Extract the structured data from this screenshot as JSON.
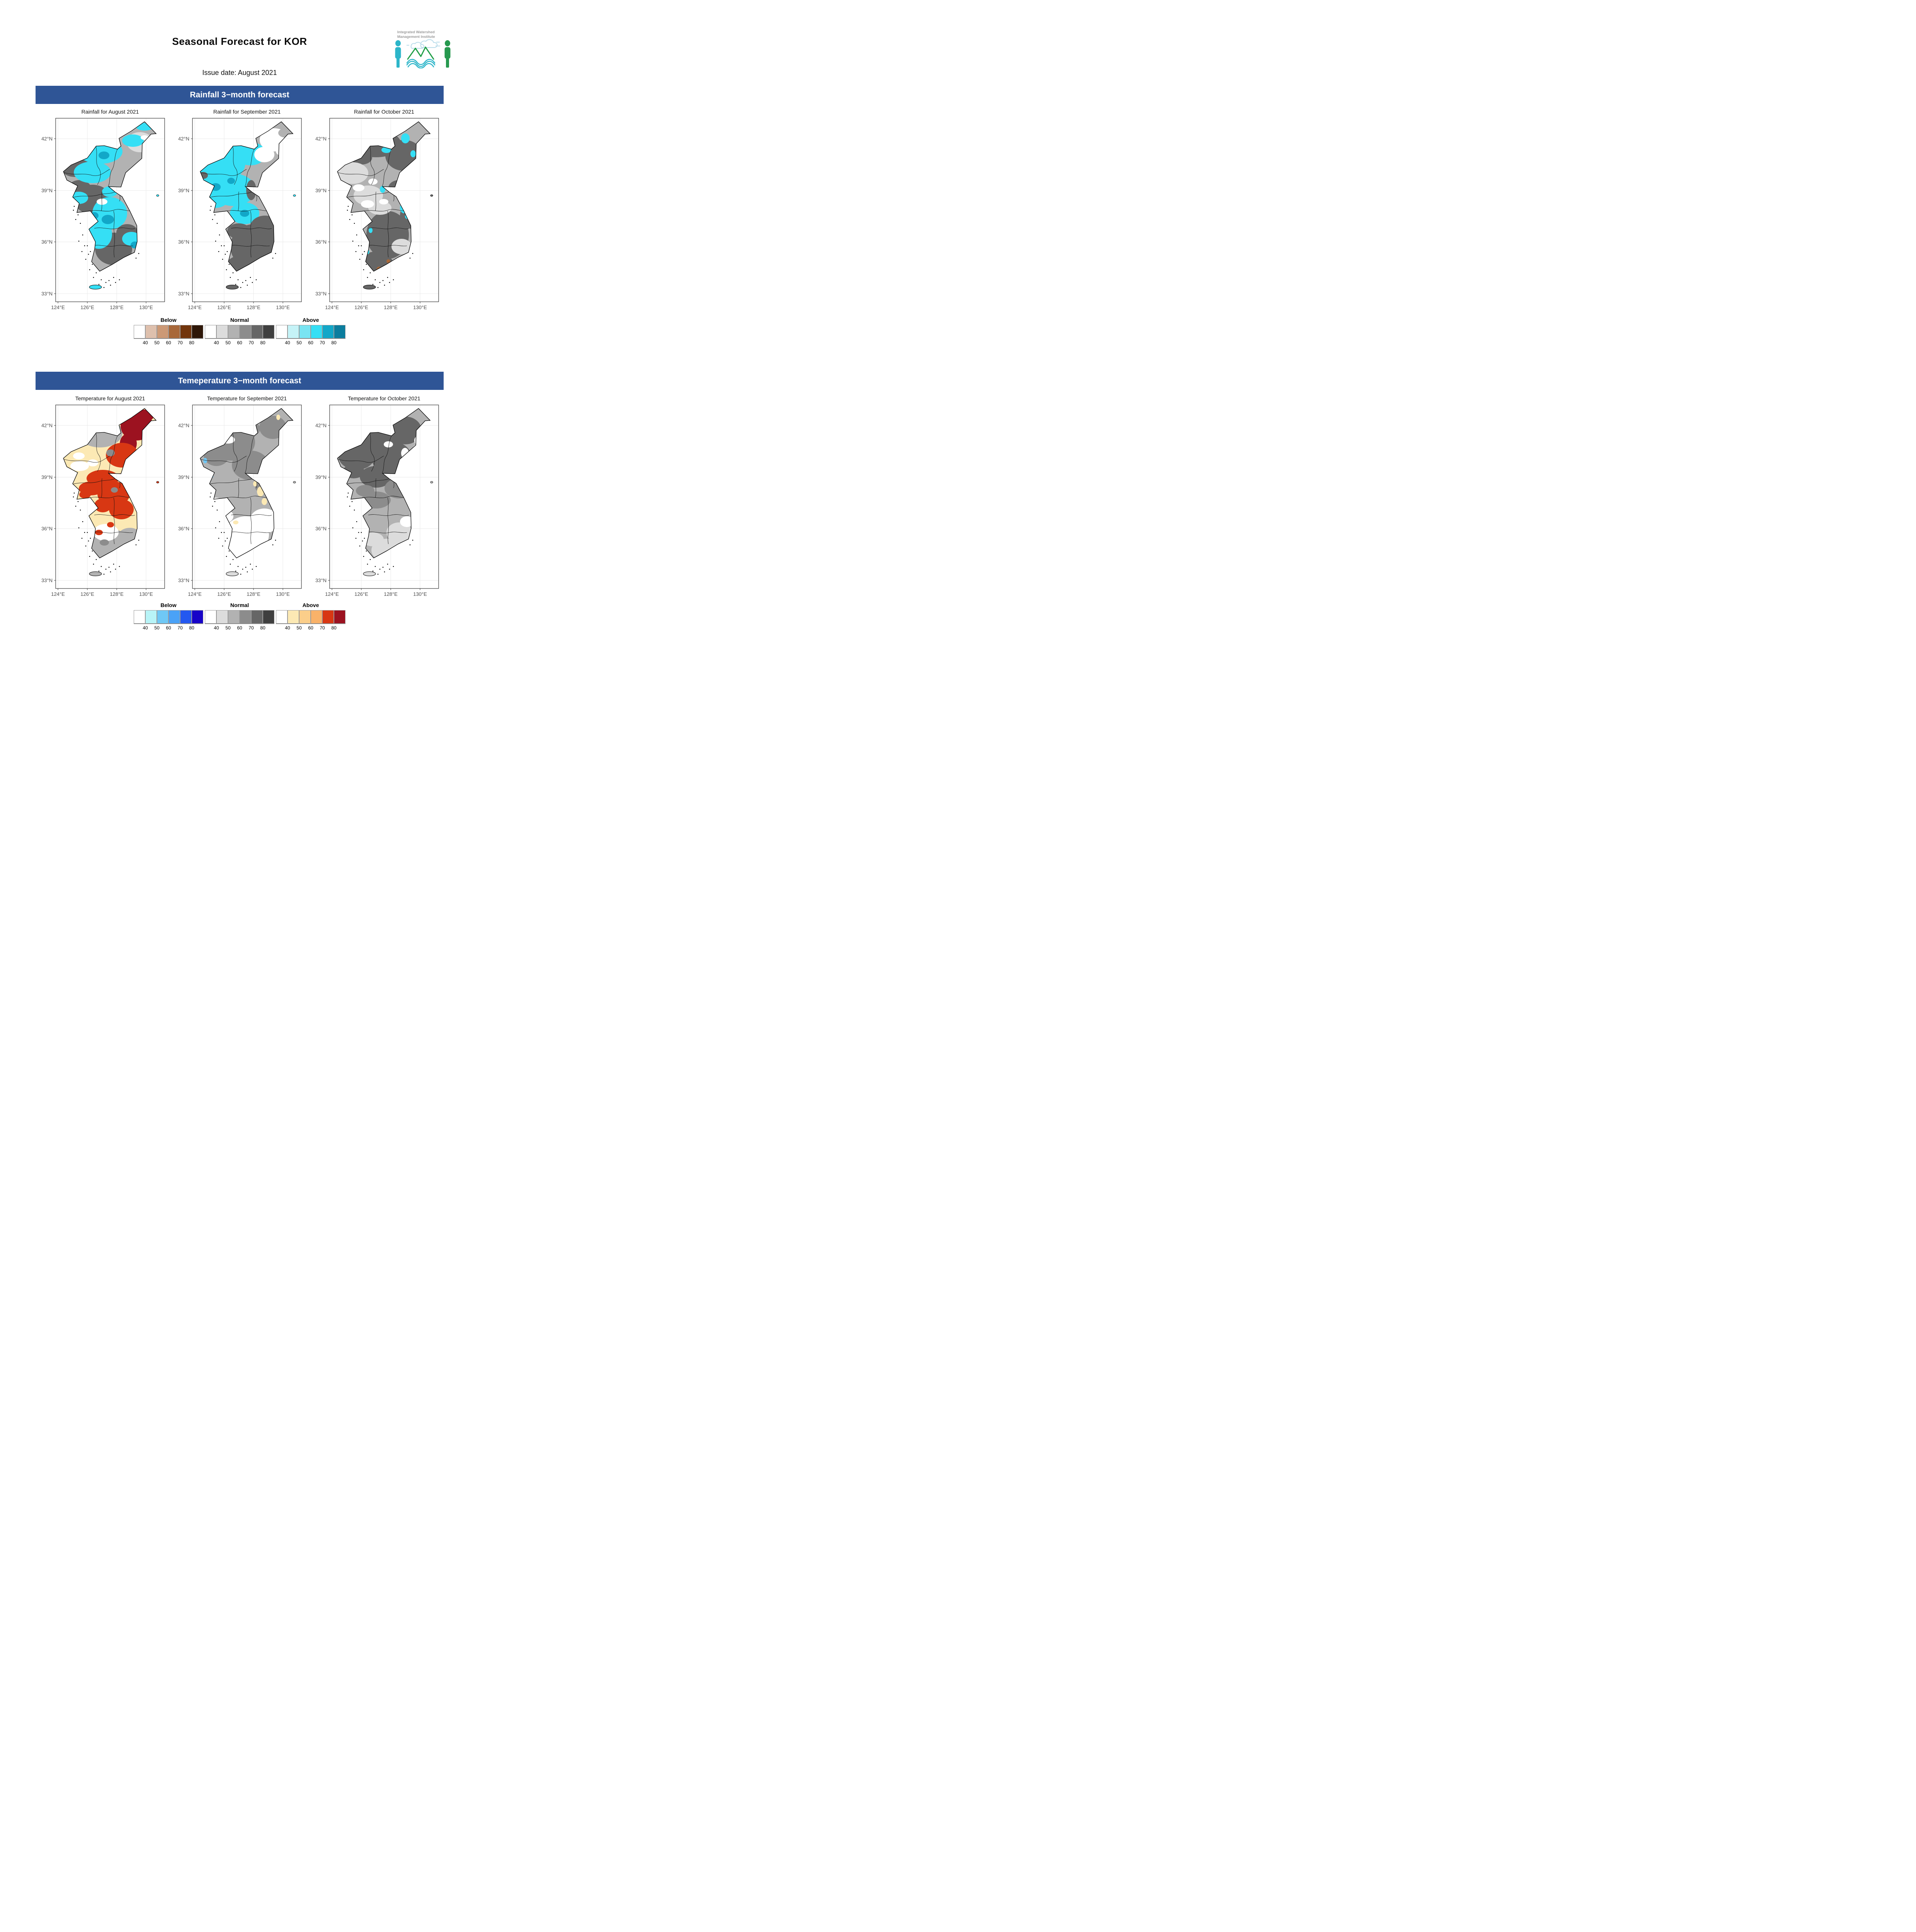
{
  "header": {
    "title": "Seasonal Forecast for KOR",
    "issue_date": "Issue date: August 2021"
  },
  "logo": {
    "name_line1": "Integrated Watershed",
    "name_line2": "Management Institute",
    "person_left_color": "#2cb5c9",
    "person_right_color": "#27994f",
    "mountain_color": "#1f9e46",
    "wave_color": "#2cb5c9",
    "cloud_color": "#b9dcea",
    "text_color": "#9b9b9b"
  },
  "axis": {
    "lat_ticks": [
      "42°N",
      "39°N",
      "36°N",
      "33°N"
    ],
    "lon_ticks": [
      "124°E",
      "126°E",
      "128°E",
      "130°E"
    ]
  },
  "legend_groups": [
    "Below",
    "Normal",
    "Above"
  ],
  "legend_values": [
    "40",
    "50",
    "60",
    "70",
    "80"
  ],
  "colors": {
    "banner_bg": "#2f5596",
    "banner_text": "#ffffff",
    "panel_border": "#333333",
    "gridline": "#e8e8e8",
    "axis_text": "#4d4d4d"
  },
  "sections": [
    {
      "banner": "Rainfall 3−month forecast",
      "maps": [
        {
          "title": "Rainfall for August 2021"
        },
        {
          "title": "Rainfall for September 2021"
        },
        {
          "title": "Rainfall for October 2021"
        }
      ],
      "legend": {
        "below_colors": [
          "#ffffff",
          "#dec0ad",
          "#cc9976",
          "#a8683a",
          "#72350c",
          "#2e1708"
        ],
        "normal_colors": [
          "#ffffff",
          "#dcdcdc",
          "#b2b2b2",
          "#8c8c8c",
          "#666666",
          "#3f3f3f"
        ],
        "above_colors": [
          "#ffffff",
          "#c5f3f7",
          "#79e4f2",
          "#35dff5",
          "#12a7c8",
          "#0b7d9e"
        ]
      }
    },
    {
      "banner": "Temeperature 3−month forecast",
      "maps": [
        {
          "title": "Temperature for August 2021"
        },
        {
          "title": "Temperature for September 2021"
        },
        {
          "title": "Temperature for October 2021"
        }
      ],
      "legend": {
        "below_colors": [
          "#ffffff",
          "#b8f4f7",
          "#6fc8f5",
          "#4aa2f7",
          "#2458f0",
          "#1703c8"
        ],
        "normal_colors": [
          "#ffffff",
          "#dcdcdc",
          "#b2b2b2",
          "#8c8c8c",
          "#666666",
          "#3f3f3f"
        ],
        "above_colors": [
          "#ffffff",
          "#fce9b4",
          "#fbce8a",
          "#f9b269",
          "#d83713",
          "#9c1220"
        ]
      }
    }
  ]
}
